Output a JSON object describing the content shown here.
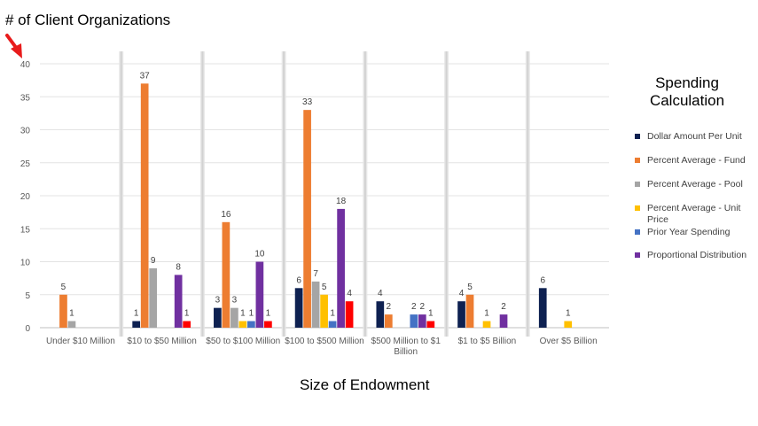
{
  "chart_data": {
    "type": "bar",
    "ylabel": "# of Client Organizations",
    "xlabel": "Size of Endowment",
    "legend_title": "Spending Calculation",
    "legend_position": "right",
    "ylim": [
      0,
      40
    ],
    "y_ticks": [
      0,
      5,
      10,
      15,
      20,
      25,
      30,
      35,
      40
    ],
    "grid": true,
    "categories": [
      "Under $10 Million",
      "$10 to $50 Million",
      "$50 to $100 Million",
      "$100 to $500 Million",
      "$500 Million to $1 Billion",
      "$1 to $5 Billion",
      "Over $5 Billion"
    ],
    "series": [
      {
        "name": "Dollar Amount Per Unit",
        "color": "#0E2151",
        "values": [
          null,
          1,
          3,
          6,
          4,
          4,
          6
        ]
      },
      {
        "name": "Percent Average - Fund",
        "color": "#ED7D31",
        "values": [
          5,
          37,
          16,
          33,
          2,
          5,
          null
        ]
      },
      {
        "name": "Percent Average - Pool",
        "color": "#A5A5A5",
        "values": [
          1,
          9,
          3,
          7,
          null,
          null,
          null
        ]
      },
      {
        "name": "Percent Average - Unit Price",
        "color": "#FFC000",
        "values": [
          null,
          null,
          1,
          5,
          null,
          1,
          1
        ]
      },
      {
        "name": "Prior Year Spending",
        "color": "#4472C4",
        "values": [
          null,
          null,
          1,
          1,
          2,
          null,
          null
        ]
      },
      {
        "name": "Proportional Distribution",
        "color": "#7030A0",
        "values": [
          null,
          8,
          10,
          18,
          2,
          2,
          null
        ]
      },
      {
        "name": "",
        "color": "#FF0000",
        "values": [
          null,
          1,
          1,
          4,
          1,
          null,
          null
        ]
      }
    ]
  }
}
